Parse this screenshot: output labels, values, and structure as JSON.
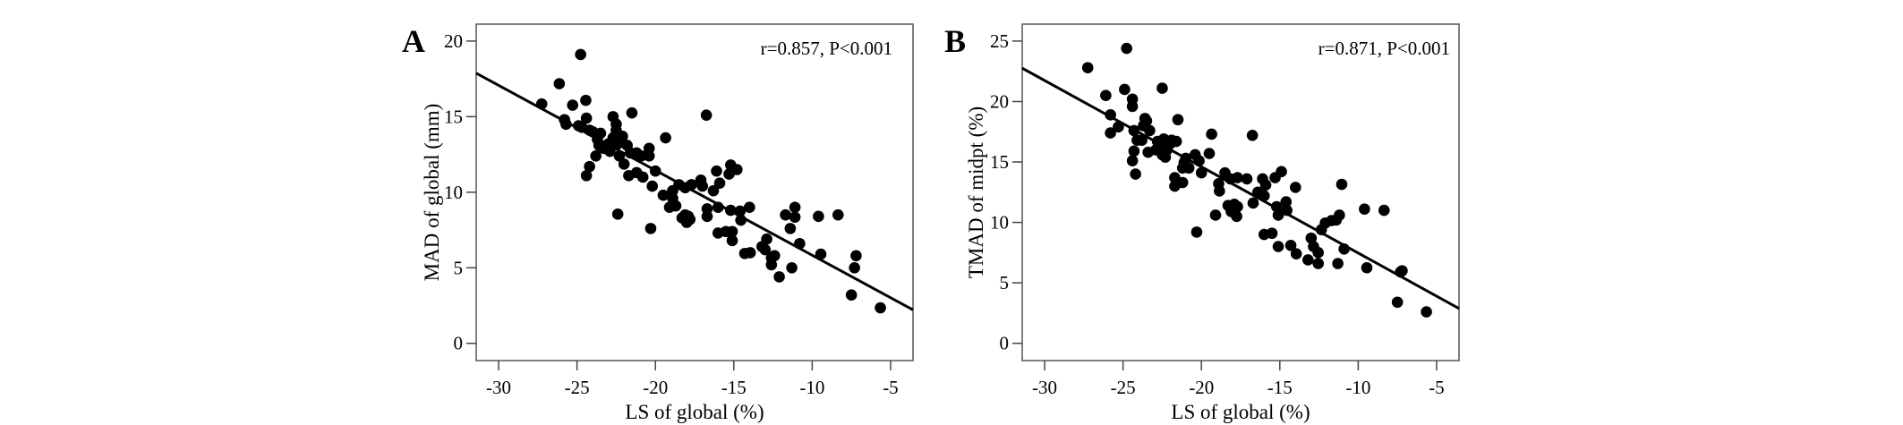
{
  "chart_data": [
    {
      "type": "scatter",
      "panel_label": "A",
      "annotation": "r=0.857, P<0.001",
      "xlabel": "LS of global (%)",
      "ylabel": "MAD of global (mm)",
      "xlim": [
        -31.43,
        -3.57
      ],
      "ylim": [
        -1.14,
        21.12
      ],
      "xticks": [
        -30,
        -25,
        -20,
        -15,
        -10,
        -5
      ],
      "xtick_labels": [
        "-30",
        "-25",
        "-20",
        "-15",
        "-10",
        "-5"
      ],
      "yticks": [
        0,
        5,
        10,
        15,
        20
      ],
      "ytick_labels": [
        "0",
        "5",
        "10",
        "15",
        "20"
      ],
      "grid": false,
      "fit_line": {
        "slope": -0.562,
        "intercept": 0.21
      },
      "points": [
        [
          -27.25,
          15.84
        ],
        [
          -26.13,
          17.18
        ],
        [
          -24.77,
          19.11
        ],
        [
          -25.28,
          15.76
        ],
        [
          -24.44,
          16.08
        ],
        [
          -25.8,
          14.8
        ],
        [
          -25.7,
          14.5
        ],
        [
          -24.9,
          14.4
        ],
        [
          -24.4,
          14.9
        ],
        [
          -24.4,
          11.1
        ],
        [
          -24.2,
          11.7
        ],
        [
          -23.8,
          12.4
        ],
        [
          -22.7,
          15.0
        ],
        [
          -22.5,
          14.5
        ],
        [
          -21.5,
          15.25
        ],
        [
          -22.4,
          8.55
        ],
        [
          -22.0,
          11.86
        ],
        [
          -21.7,
          11.1
        ],
        [
          -21.2,
          11.3
        ],
        [
          -20.8,
          11.0
        ],
        [
          -20.4,
          12.9
        ],
        [
          -20.4,
          12.4
        ],
        [
          -20.9,
          12.4
        ],
        [
          -20.0,
          11.4
        ],
        [
          -20.2,
          10.4
        ],
        [
          -20.3,
          7.6
        ],
        [
          -19.35,
          13.6
        ],
        [
          -19.5,
          9.8
        ],
        [
          -18.9,
          10.1
        ],
        [
          -18.9,
          9.6
        ],
        [
          -18.7,
          9.1
        ],
        [
          -19.1,
          9.0
        ],
        [
          -18.5,
          10.5
        ],
        [
          -18.1,
          10.3
        ],
        [
          -17.7,
          10.5
        ],
        [
          -18.3,
          8.3
        ],
        [
          -18.0,
          8.0
        ],
        [
          -17.8,
          8.2
        ],
        [
          -18.1,
          8.5
        ],
        [
          -17.9,
          8.4
        ],
        [
          -17.1,
          10.8
        ],
        [
          -17.0,
          10.4
        ],
        [
          -16.75,
          15.1
        ],
        [
          -16.7,
          8.9
        ],
        [
          -16.7,
          8.4
        ],
        [
          -16.3,
          10.1
        ],
        [
          -16.1,
          11.4
        ],
        [
          -15.9,
          10.6
        ],
        [
          -16.0,
          9.0
        ],
        [
          -16.0,
          7.3
        ],
        [
          -15.5,
          7.4
        ],
        [
          -15.1,
          7.4
        ],
        [
          -15.2,
          11.8
        ],
        [
          -15.3,
          11.2
        ],
        [
          -14.8,
          11.5
        ],
        [
          -15.2,
          8.8
        ],
        [
          -15.1,
          6.8
        ],
        [
          -14.6,
          8.75
        ],
        [
          -14.55,
          8.15
        ],
        [
          -14.0,
          9.0
        ],
        [
          -14.3,
          5.95
        ],
        [
          -13.95,
          6.0
        ],
        [
          -13.2,
          6.4
        ],
        [
          -13.0,
          6.2
        ],
        [
          -12.9,
          6.9
        ],
        [
          -12.6,
          5.2
        ],
        [
          -12.6,
          5.65
        ],
        [
          -12.4,
          5.8
        ],
        [
          -12.1,
          4.4
        ],
        [
          -11.7,
          8.5
        ],
        [
          -11.3,
          5.0
        ],
        [
          -11.4,
          7.6
        ],
        [
          -11.1,
          9.0
        ],
        [
          -11.1,
          8.35
        ],
        [
          -10.8,
          6.6
        ],
        [
          -9.6,
          8.4
        ],
        [
          -9.45,
          5.9
        ],
        [
          -8.35,
          8.5
        ],
        [
          -7.5,
          3.2
        ],
        [
          -7.2,
          5.8
        ],
        [
          -7.3,
          5.0
        ],
        [
          -5.65,
          2.35
        ],
        [
          -24.2,
          14.1
        ],
        [
          -24.0,
          14.0
        ],
        [
          -23.7,
          13.5
        ],
        [
          -23.6,
          13.1
        ],
        [
          -23.5,
          13.9
        ],
        [
          -23.3,
          12.9
        ],
        [
          -23.0,
          13.2
        ],
        [
          -22.9,
          12.7
        ],
        [
          -22.7,
          13.6
        ],
        [
          -22.5,
          14.1
        ],
        [
          -22.4,
          13.2
        ],
        [
          -22.3,
          12.4
        ],
        [
          -22.1,
          13.7
        ],
        [
          -21.8,
          13.1
        ],
        [
          -21.6,
          12.6
        ],
        [
          -21.2,
          12.6
        ],
        [
          -24.7,
          14.3
        ]
      ]
    },
    {
      "type": "scatter",
      "panel_label": "B",
      "annotation": "r=0.871, P<0.001",
      "xlabel": "LS of global (%)",
      "ylabel": "TMAD of midpt (%)",
      "xlim": [
        -31.43,
        -3.57
      ],
      "ylim": [
        -1.43,
        26.4
      ],
      "xticks": [
        -30,
        -25,
        -20,
        -15,
        -10,
        -5
      ],
      "xtick_labels": [
        "-30",
        "-25",
        "-20",
        "-15",
        "-10",
        "-5"
      ],
      "yticks": [
        0,
        5,
        10,
        15,
        20,
        25
      ],
      "ytick_labels": [
        "0",
        "5",
        "10",
        "15",
        "20",
        "25"
      ],
      "grid": false,
      "fit_line": {
        "slope": -0.7136,
        "intercept": 0.33
      },
      "points": [
        [
          -27.25,
          22.8
        ],
        [
          -24.77,
          24.4
        ],
        [
          -26.1,
          20.5
        ],
        [
          -24.9,
          21.0
        ],
        [
          -24.4,
          20.2
        ],
        [
          -24.4,
          19.6
        ],
        [
          -25.8,
          18.9
        ],
        [
          -25.8,
          17.4
        ],
        [
          -25.3,
          17.9
        ],
        [
          -24.3,
          17.6
        ],
        [
          -24.3,
          15.9
        ],
        [
          -24.4,
          15.1
        ],
        [
          -24.2,
          14.0
        ],
        [
          -24.1,
          16.8
        ],
        [
          -23.8,
          16.8
        ],
        [
          -23.7,
          18.0
        ],
        [
          -23.6,
          18.6
        ],
        [
          -23.5,
          18.4
        ],
        [
          -23.3,
          17.6
        ],
        [
          -23.4,
          15.8
        ],
        [
          -22.8,
          16.7
        ],
        [
          -22.6,
          16.2
        ],
        [
          -22.4,
          16.9
        ],
        [
          -22.2,
          16.0
        ],
        [
          -22.5,
          15.6
        ],
        [
          -22.0,
          16.5
        ],
        [
          -22.9,
          16.0
        ],
        [
          -22.3,
          15.4
        ],
        [
          -21.9,
          16.8
        ],
        [
          -22.5,
          21.1
        ],
        [
          -21.5,
          18.5
        ],
        [
          -21.6,
          16.7
        ],
        [
          -21.7,
          13.7
        ],
        [
          -21.7,
          13.0
        ],
        [
          -21.2,
          14.5
        ],
        [
          -21.2,
          13.3
        ],
        [
          -21.1,
          14.95
        ],
        [
          -20.8,
          14.5
        ],
        [
          -21.0,
          15.3
        ],
        [
          -20.4,
          15.6
        ],
        [
          -20.15,
          15.1
        ],
        [
          -20.0,
          14.1
        ],
        [
          -20.3,
          9.2
        ],
        [
          -19.5,
          15.7
        ],
        [
          -19.35,
          17.3
        ],
        [
          -19.1,
          10.6
        ],
        [
          -18.9,
          13.2
        ],
        [
          -18.85,
          12.6
        ],
        [
          -18.5,
          14.1
        ],
        [
          -18.15,
          13.6
        ],
        [
          -17.7,
          13.7
        ],
        [
          -18.3,
          11.4
        ],
        [
          -18.0,
          11.1
        ],
        [
          -18.1,
          10.9
        ],
        [
          -17.9,
          11.5
        ],
        [
          -17.7,
          11.3
        ],
        [
          -17.75,
          10.5
        ],
        [
          -17.1,
          13.6
        ],
        [
          -16.75,
          17.2
        ],
        [
          -16.7,
          11.6
        ],
        [
          -16.4,
          12.5
        ],
        [
          -16.1,
          13.6
        ],
        [
          -15.9,
          13.1
        ],
        [
          -16.0,
          12.2
        ],
        [
          -16.0,
          9.0
        ],
        [
          -15.5,
          9.1
        ],
        [
          -15.3,
          13.7
        ],
        [
          -14.9,
          14.2
        ],
        [
          -15.2,
          11.3
        ],
        [
          -15.1,
          10.6
        ],
        [
          -15.1,
          8.0
        ],
        [
          -14.6,
          11.7
        ],
        [
          -14.55,
          11.0
        ],
        [
          -14.0,
          12.9
        ],
        [
          -14.3,
          8.1
        ],
        [
          -13.95,
          7.4
        ],
        [
          -13.2,
          6.9
        ],
        [
          -13.0,
          8.7
        ],
        [
          -12.85,
          8.0
        ],
        [
          -12.55,
          7.5
        ],
        [
          -12.55,
          6.6
        ],
        [
          -12.35,
          9.4
        ],
        [
          -12.1,
          9.95
        ],
        [
          -11.7,
          10.15
        ],
        [
          -11.4,
          10.2
        ],
        [
          -11.2,
          10.6
        ],
        [
          -11.05,
          13.15
        ],
        [
          -11.3,
          6.6
        ],
        [
          -10.9,
          7.8
        ],
        [
          -9.6,
          11.1
        ],
        [
          -9.45,
          6.25
        ],
        [
          -8.35,
          11.0
        ],
        [
          -7.5,
          3.4
        ],
        [
          -7.2,
          6.0
        ],
        [
          -7.3,
          5.9
        ],
        [
          -5.65,
          2.6
        ]
      ]
    }
  ]
}
